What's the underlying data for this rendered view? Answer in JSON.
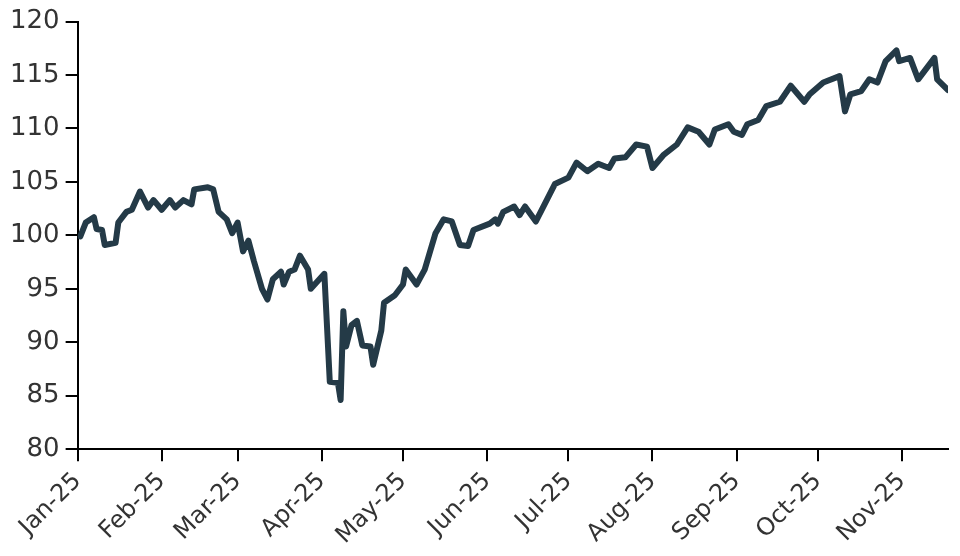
{
  "chart_data": {
    "type": "line",
    "x": [
      "2025-01-02",
      "2025-01-04",
      "2025-01-07",
      "2025-01-08",
      "2025-01-10",
      "2025-01-11",
      "2025-01-15",
      "2025-01-16",
      "2025-01-19",
      "2025-01-21",
      "2025-01-24",
      "2025-01-27",
      "2025-01-29",
      "2025-02-01",
      "2025-02-04",
      "2025-02-06",
      "2025-02-09",
      "2025-02-12",
      "2025-02-13",
      "2025-02-18",
      "2025-02-20",
      "2025-02-22",
      "2025-02-25",
      "2025-02-27",
      "2025-03-01",
      "2025-03-03",
      "2025-03-05",
      "2025-03-07",
      "2025-03-10",
      "2025-03-12",
      "2025-03-14",
      "2025-03-17",
      "2025-03-18",
      "2025-03-20",
      "2025-03-22",
      "2025-03-24",
      "2025-03-27",
      "2025-03-28",
      "2025-04-02",
      "2025-04-04",
      "2025-04-07",
      "2025-04-08",
      "2025-04-09",
      "2025-04-10",
      "2025-04-12",
      "2025-04-14",
      "2025-04-16",
      "2025-04-19",
      "2025-04-20",
      "2025-04-23",
      "2025-04-24",
      "2025-04-28",
      "2025-05-01",
      "2025-05-02",
      "2025-05-06",
      "2025-05-09",
      "2025-05-13",
      "2025-05-16",
      "2025-05-19",
      "2025-05-22",
      "2025-05-25",
      "2025-05-27",
      "2025-06-02",
      "2025-06-04",
      "2025-06-05",
      "2025-06-07",
      "2025-06-11",
      "2025-06-13",
      "2025-06-15",
      "2025-06-19",
      "2025-06-23",
      "2025-06-26",
      "2025-07-01",
      "2025-07-04",
      "2025-07-08",
      "2025-07-12",
      "2025-07-16",
      "2025-07-18",
      "2025-07-22",
      "2025-07-26",
      "2025-07-30",
      "2025-08-01",
      "2025-08-05",
      "2025-08-10",
      "2025-08-14",
      "2025-08-18",
      "2025-08-22",
      "2025-08-24",
      "2025-08-29",
      "2025-08-31",
      "2025-09-03",
      "2025-09-05",
      "2025-09-09",
      "2025-09-12",
      "2025-09-17",
      "2025-09-21",
      "2025-09-26",
      "2025-09-28",
      "2025-10-03",
      "2025-10-09",
      "2025-10-11",
      "2025-10-13",
      "2025-10-17",
      "2025-10-20",
      "2025-10-23",
      "2025-10-26",
      "2025-10-30",
      "2025-10-31",
      "2025-11-04",
      "2025-11-07",
      "2025-11-10",
      "2025-11-13",
      "2025-11-14",
      "2025-11-18"
    ],
    "values": [
      99.9,
      101.2,
      101.7,
      100.6,
      100.5,
      99.1,
      99.3,
      101.2,
      102.2,
      102.4,
      104.1,
      102.6,
      103.3,
      102.4,
      103.3,
      102.6,
      103.3,
      102.9,
      104.3,
      104.5,
      104.3,
      102.2,
      101.5,
      100.2,
      101.2,
      98.5,
      99.5,
      97.6,
      95.0,
      94.0,
      95.9,
      96.6,
      95.4,
      96.6,
      96.8,
      98.1,
      96.8,
      95.0,
      96.4,
      86.3,
      86.2,
      84.6,
      92.9,
      89.6,
      91.6,
      92.0,
      89.7,
      89.6,
      87.9,
      91.1,
      93.7,
      94.4,
      95.4,
      96.8,
      95.4,
      96.8,
      100.2,
      101.5,
      101.3,
      99.1,
      99.0,
      100.5,
      101.1,
      101.5,
      101.1,
      102.2,
      102.7,
      101.9,
      102.7,
      101.3,
      103.3,
      104.8,
      105.4,
      106.8,
      106.0,
      106.7,
      106.3,
      107.2,
      107.3,
      108.5,
      108.3,
      106.3,
      107.5,
      108.5,
      110.1,
      109.7,
      108.5,
      109.9,
      110.4,
      109.7,
      109.4,
      110.4,
      110.8,
      112.1,
      112.5,
      114.0,
      112.5,
      113.2,
      114.3,
      114.9,
      111.6,
      113.2,
      113.5,
      114.6,
      114.3,
      116.3,
      117.3,
      116.3,
      116.6,
      114.6,
      115.6,
      116.6,
      114.6,
      113.6
    ],
    "color": "#243a47",
    "xlim": [
      "2025-01-01",
      "2025-11-18"
    ],
    "xticks": [
      {
        "value": "2025-01-01",
        "label": "Jan-25"
      },
      {
        "value": "2025-02-01",
        "label": "Feb-25"
      },
      {
        "value": "2025-03-01",
        "label": "Mar-25"
      },
      {
        "value": "2025-04-01",
        "label": "Apr-25"
      },
      {
        "value": "2025-05-01",
        "label": "May-25"
      },
      {
        "value": "2025-06-01",
        "label": "Jun-25"
      },
      {
        "value": "2025-07-01",
        "label": "Jul-25"
      },
      {
        "value": "2025-08-01",
        "label": "Aug-25"
      },
      {
        "value": "2025-09-01",
        "label": "Sep-25"
      },
      {
        "value": "2025-10-01",
        "label": "Oct-25"
      },
      {
        "value": "2025-11-01",
        "label": "Nov-25"
      }
    ],
    "ylim": [
      80,
      120
    ],
    "yticks": [
      80,
      85,
      90,
      95,
      100,
      105,
      110,
      115,
      120
    ],
    "grid": false,
    "legend": false,
    "marker": "none",
    "line_style": "solid"
  }
}
